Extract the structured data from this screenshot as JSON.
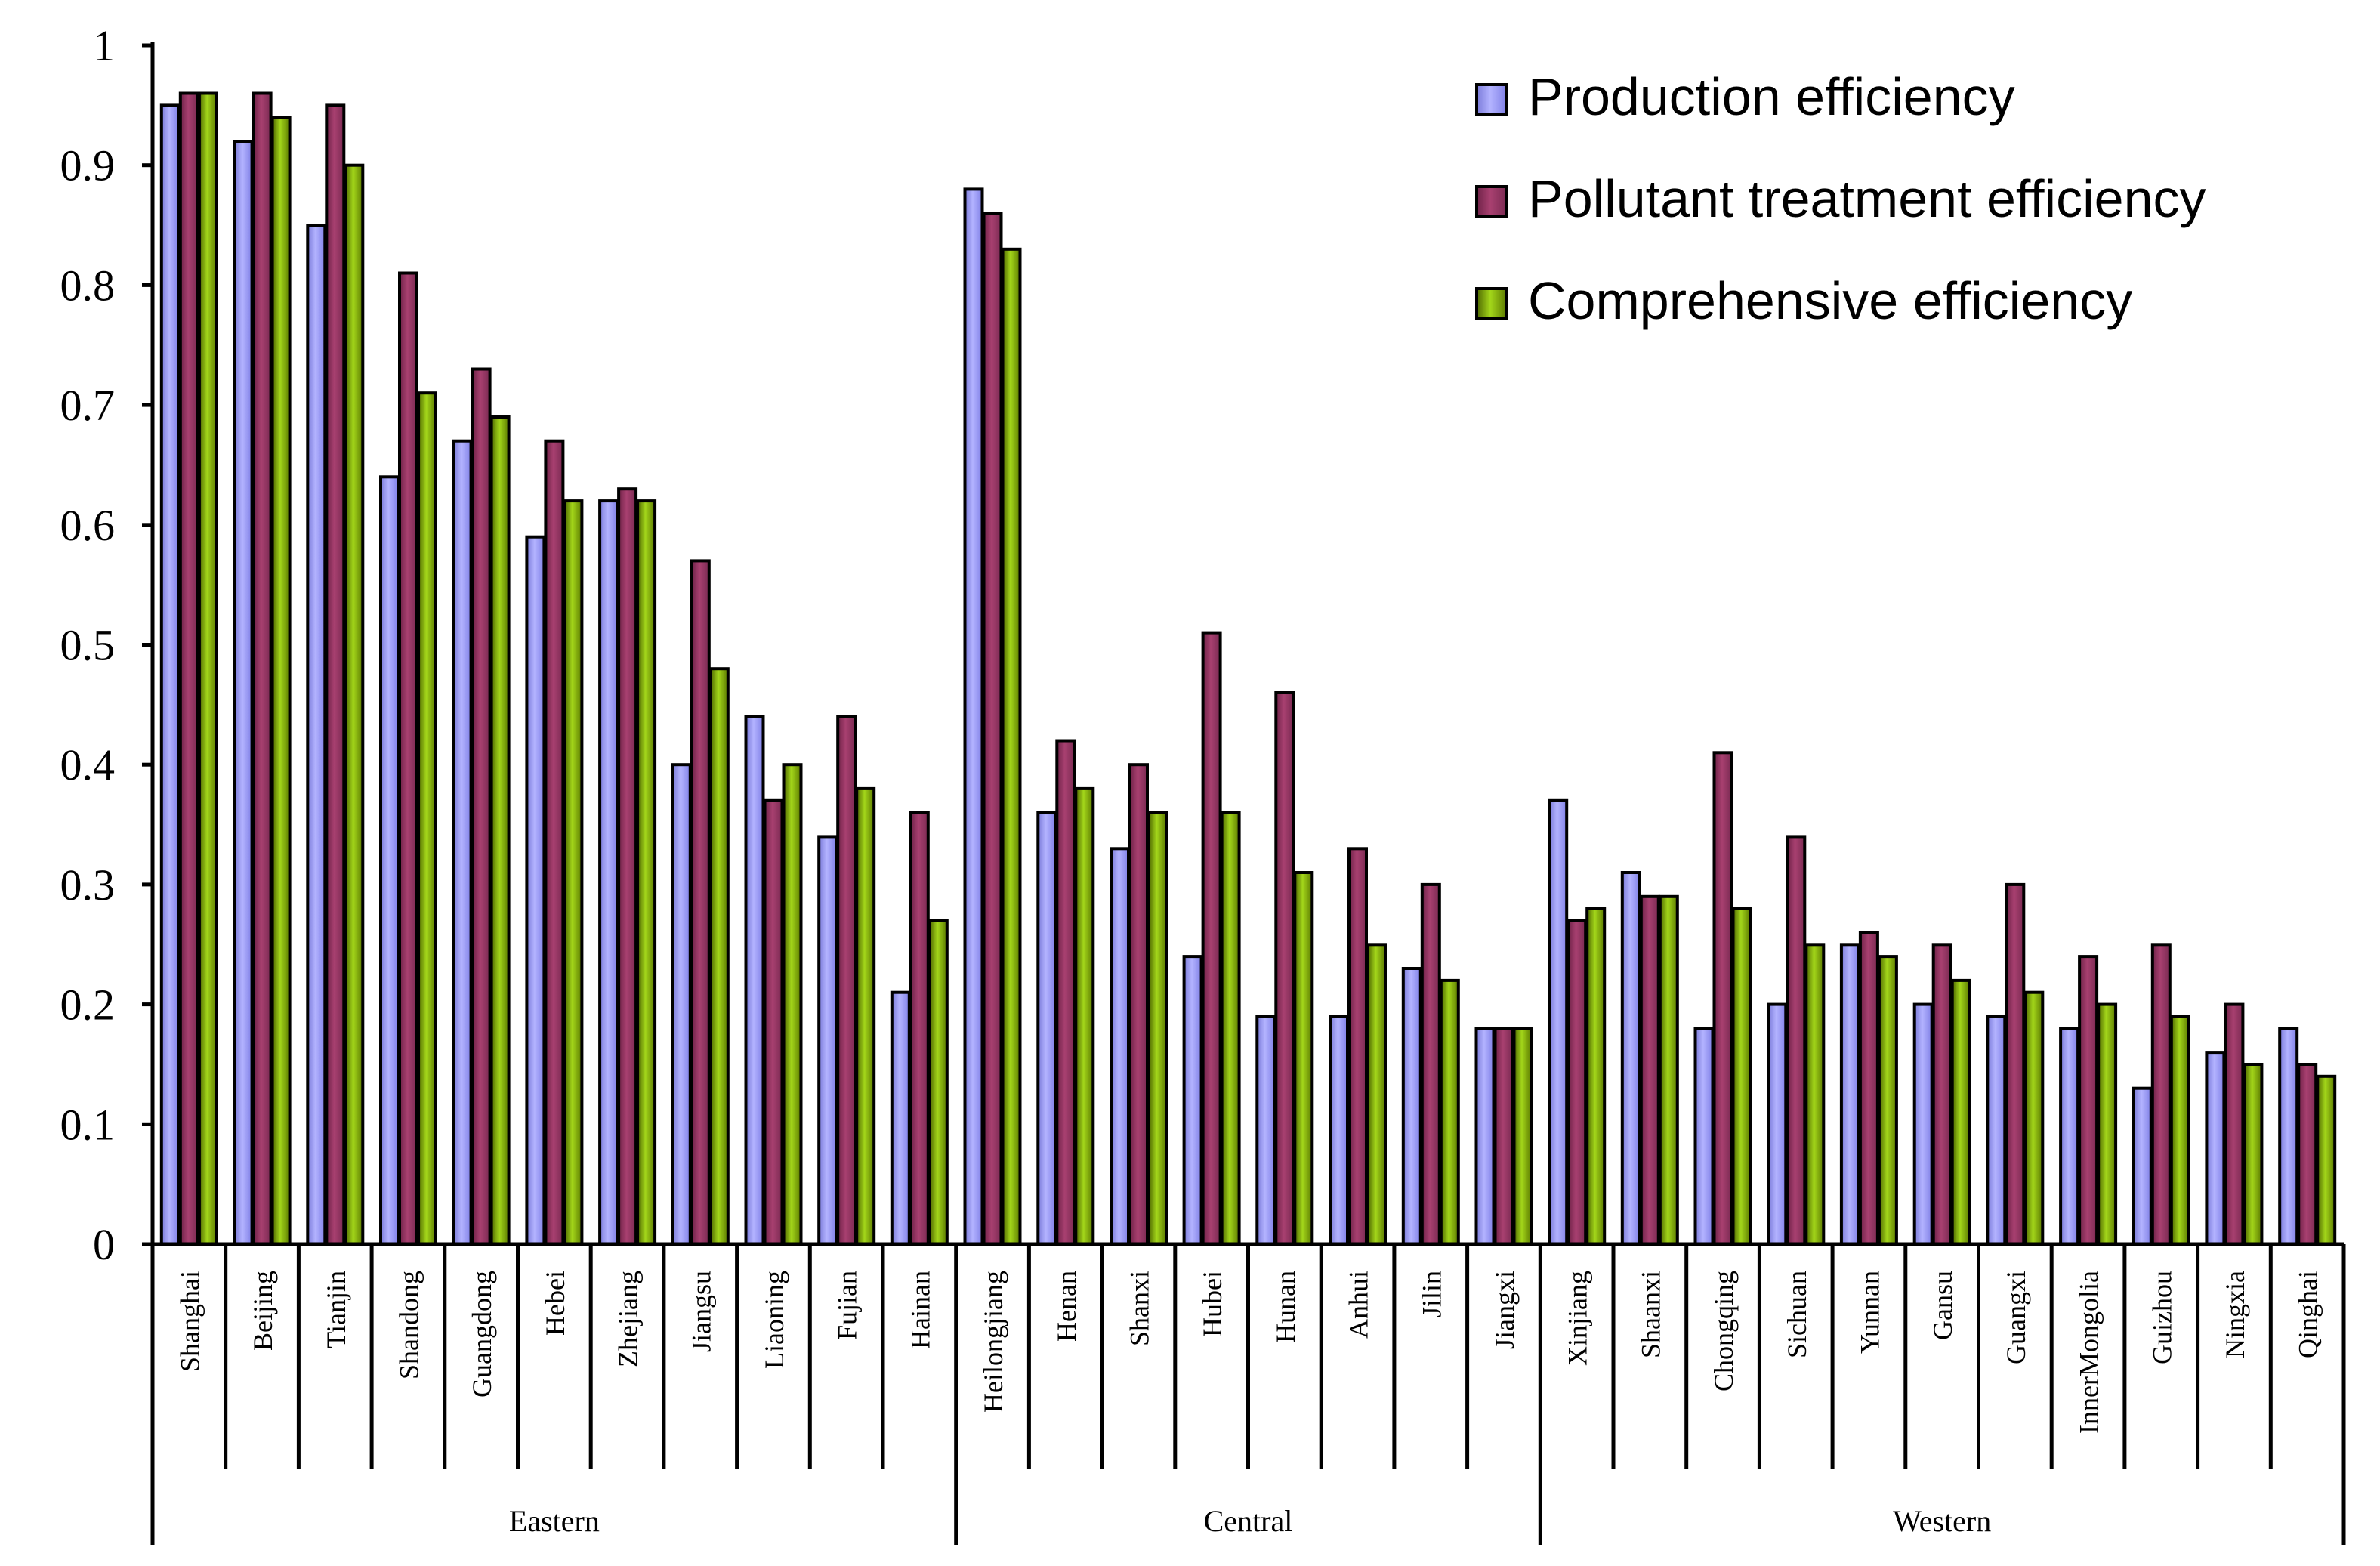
{
  "chart_data": {
    "type": "bar",
    "title": "",
    "xlabel": "",
    "ylabel": "",
    "ylim": [
      0,
      1
    ],
    "yticks": [
      0,
      0.1,
      0.2,
      0.3,
      0.4,
      0.5,
      0.6,
      0.7,
      0.8,
      0.9,
      1
    ],
    "ytick_labels": [
      "0",
      "0.1",
      "0.2",
      "0.3",
      "0.4",
      "0.5",
      "0.6",
      "0.7",
      "0.8",
      "0.9",
      "1"
    ],
    "grid": false,
    "legend_position": "top-right",
    "categories": [
      "Shanghai",
      "Beijing",
      "Tianjin",
      "Shandong",
      "Guangdong",
      "Hebei",
      "Zhejiang",
      "Jiangsu",
      "Liaoning",
      "Fujian",
      "Hainan",
      "Heilongjiang",
      "Henan",
      "Shanxi",
      "Hubei",
      "Hunan",
      "Anhui",
      "Jilin",
      "Jiangxi",
      "Xinjiang",
      "Shaanxi",
      "Chongqing",
      "Sichuan",
      "Yunnan",
      "Gansu",
      "Guangxi",
      "InnerMongolia",
      "Guizhou",
      "Ningxia",
      "Qinghai"
    ],
    "groups": [
      {
        "name": "Eastern",
        "count": 11
      },
      {
        "name": "Central",
        "count": 8
      },
      {
        "name": "Western",
        "count": 11
      }
    ],
    "series": [
      {
        "name": "Production efficiency",
        "color": "#9999ff",
        "values": [
          0.95,
          0.92,
          0.85,
          0.64,
          0.67,
          0.59,
          0.62,
          0.4,
          0.44,
          0.34,
          0.21,
          0.88,
          0.36,
          0.33,
          0.24,
          0.19,
          0.19,
          0.23,
          0.18,
          0.37,
          0.31,
          0.18,
          0.2,
          0.25,
          0.2,
          0.19,
          0.18,
          0.13,
          0.16,
          0.18
        ]
      },
      {
        "name": "Pollutant treatment efficiency",
        "color": "#993366",
        "values": [
          0.96,
          0.96,
          0.95,
          0.81,
          0.73,
          0.67,
          0.63,
          0.57,
          0.37,
          0.44,
          0.36,
          0.86,
          0.42,
          0.4,
          0.51,
          0.46,
          0.33,
          0.3,
          0.18,
          0.27,
          0.29,
          0.41,
          0.34,
          0.26,
          0.25,
          0.3,
          0.24,
          0.25,
          0.2,
          0.15
        ]
      },
      {
        "name": "Comprehensive efficiency",
        "color": "#99cc00",
        "values": [
          0.96,
          0.94,
          0.9,
          0.71,
          0.69,
          0.62,
          0.62,
          0.48,
          0.4,
          0.38,
          0.27,
          0.83,
          0.38,
          0.36,
          0.36,
          0.31,
          0.25,
          0.22,
          0.18,
          0.28,
          0.29,
          0.28,
          0.25,
          0.24,
          0.22,
          0.21,
          0.2,
          0.19,
          0.15,
          0.14
        ]
      }
    ]
  }
}
